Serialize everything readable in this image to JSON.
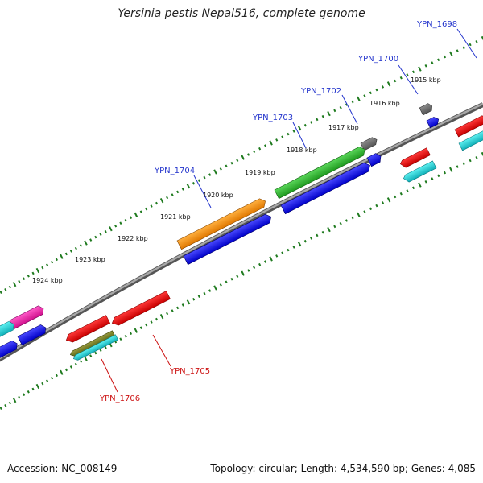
{
  "header": {
    "title": "Yersinia pestis Nepal516, complete genome"
  },
  "footer": {
    "accession": "Accession: NC_008149",
    "summary": "Topology: circular; Length: 4,534,590 bp; Genes: 4,085"
  },
  "colors": {
    "backbone": "#7a7a7a",
    "tick": "#1e7a1e",
    "label_blue": "#2233cc",
    "label_red": "#cc1111"
  },
  "kbp_labels": [
    "1915 kbp",
    "1916 kbp",
    "1917 kbp",
    "1918 kbp",
    "1919 kbp",
    "1920 kbp",
    "1921 kbp",
    "1922 kbp",
    "1923 kbp",
    "1924 kbp"
  ],
  "gene_labels": {
    "ypn1698": "YPN_1698",
    "ypn1700": "YPN_1700",
    "ypn1702": "YPN_1702",
    "ypn1703": "YPN_1703",
    "ypn1704": "YPN_1704",
    "ypn1705": "YPN_1705",
    "ypn1706": "YPN_1706"
  },
  "gene_colors": [
    "blue",
    "red",
    "orange",
    "green",
    "grey",
    "cyan",
    "magenta",
    "olive"
  ]
}
